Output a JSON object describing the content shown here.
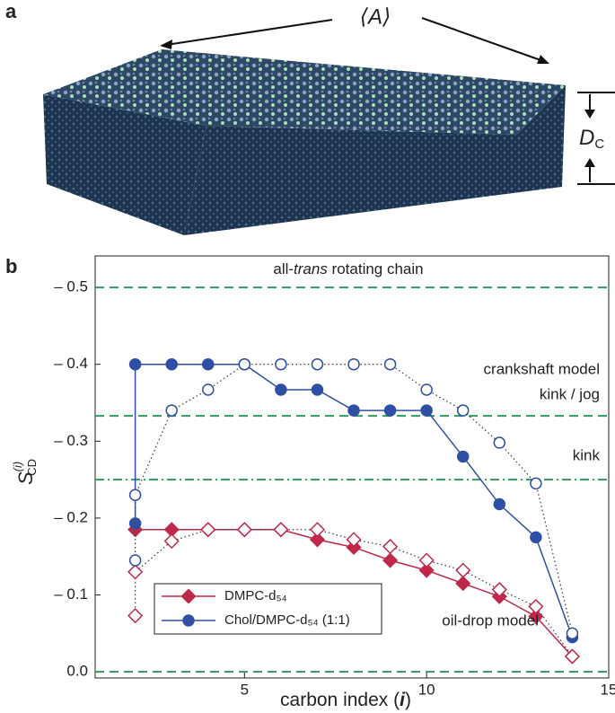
{
  "panel_labels": [
    "a",
    "b"
  ],
  "figure_a": {
    "area_label": "⟨A⟩",
    "thickness_label": {
      "main": "D",
      "sub": "C"
    }
  },
  "chart_data": {
    "type": "line",
    "xlabel": {
      "text": "carbon index (",
      "var": "i",
      "end": ")"
    },
    "ylabel": {
      "main": "S",
      "sup": "(i)",
      "sub": "CD"
    },
    "xlim": [
      0.9,
      15
    ],
    "ylim": [
      0.008,
      -0.541
    ],
    "xticks": [
      5,
      10,
      15
    ],
    "yticks": [
      {
        "value": -0.5,
        "label": "– 0.5"
      },
      {
        "value": -0.4,
        "label": "– 0.4"
      },
      {
        "value": -0.3,
        "label": "– 0.3"
      },
      {
        "value": -0.2,
        "label": "– 0.2"
      },
      {
        "value": -0.1,
        "label": "– 0.1"
      },
      {
        "value": 0,
        "label": "0.0"
      }
    ],
    "reference_color": "#2e9a5e",
    "reference_lines": [
      {
        "value": -0.5,
        "style": "dashed"
      },
      {
        "value": -0.333,
        "style": "dashed"
      },
      {
        "value": -0.25,
        "style": "dashdot"
      },
      {
        "value": 0,
        "style": "dashed"
      }
    ],
    "annotations": [
      [
        "all-",
        "trans",
        " rotating chain"
      ],
      "crankshaft model",
      "kink / jog",
      "kink",
      "oil-drop model"
    ],
    "series": [
      {
        "name": "DMPC-d₅₄",
        "color": "#c0284a",
        "marker": "diamond",
        "filled": true,
        "line": "solid",
        "x": [
          2,
          3,
          4,
          5,
          6,
          7,
          8,
          9,
          10,
          11,
          12,
          13,
          14
        ],
        "values": [
          -0.185,
          -0.185,
          -0.185,
          -0.185,
          -0.185,
          -0.172,
          -0.162,
          -0.145,
          -0.132,
          -0.115,
          -0.098,
          -0.072,
          -0.02
        ]
      },
      {
        "name": "Chol/DMPC-d₅₄ (1:1)",
        "color": "#2f4fa5",
        "marker": "circle",
        "filled": true,
        "line": "solid",
        "x": [
          2,
          2,
          3,
          4,
          5,
          6,
          7,
          8,
          9,
          10,
          11,
          12,
          13,
          14
        ],
        "values": [
          -0.193,
          -0.4,
          -0.4,
          -0.4,
          -0.4,
          -0.367,
          -0.367,
          -0.34,
          -0.34,
          -0.34,
          -0.28,
          -0.218,
          -0.175,
          -0.045
        ]
      },
      {
        "color": "#c0284a",
        "marker": "diamond",
        "filled": false,
        "line": "dotted",
        "x": [
          2,
          2,
          3,
          4,
          5,
          6,
          7,
          8,
          9,
          10,
          11,
          12,
          13,
          14
        ],
        "values": [
          -0.073,
          -0.13,
          -0.17,
          -0.185,
          -0.185,
          -0.185,
          -0.185,
          -0.172,
          -0.163,
          -0.145,
          -0.132,
          -0.107,
          -0.085,
          -0.02
        ]
      },
      {
        "color": "#2f4fa5",
        "marker": "circle",
        "filled": false,
        "line": "dotted",
        "x": [
          2,
          2,
          3,
          4,
          5,
          6,
          7,
          8,
          9,
          10,
          11,
          12,
          13,
          14
        ],
        "values": [
          -0.145,
          -0.23,
          -0.34,
          -0.367,
          -0.4,
          -0.4,
          -0.4,
          -0.4,
          -0.4,
          -0.367,
          -0.34,
          -0.298,
          -0.245,
          -0.05
        ]
      }
    ]
  }
}
